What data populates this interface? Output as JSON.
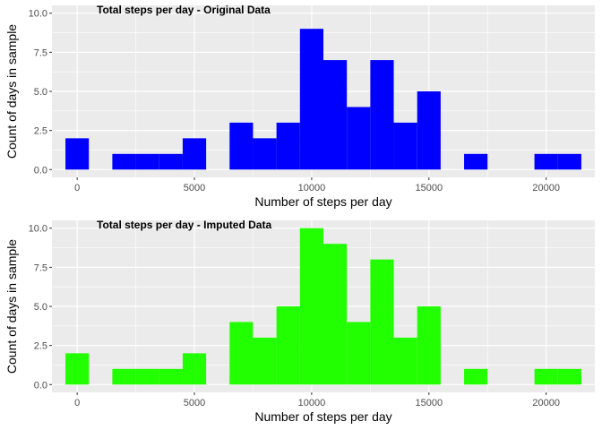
{
  "chart_data": [
    {
      "type": "bar",
      "subtype": "histogram",
      "title": "Total steps per day - Original Data",
      "xlabel": "Number of steps per day",
      "ylabel": "Count of days in sample",
      "bin_width": 1000,
      "bin_centers": [
        0,
        1000,
        2000,
        3000,
        4000,
        5000,
        6000,
        7000,
        8000,
        9000,
        10000,
        11000,
        12000,
        13000,
        14000,
        15000,
        16000,
        17000,
        18000,
        19000,
        20000,
        21000
      ],
      "values": [
        2,
        0,
        1,
        1,
        1,
        2,
        0,
        3,
        2,
        3,
        9,
        7,
        4,
        7,
        3,
        5,
        0,
        1,
        0,
        0,
        1,
        1
      ],
      "xlim": [
        -1075,
        22075
      ],
      "ylim": [
        -0.5,
        10.5
      ],
      "x_ticks": [
        0,
        5000,
        10000,
        15000,
        20000
      ],
      "x_tick_labels": [
        "0",
        "5000",
        "10000",
        "15000",
        "20000"
      ],
      "y_ticks": [
        0,
        2.5,
        5,
        7.5,
        10
      ],
      "y_tick_labels": [
        "0.0",
        "2.5",
        "5.0",
        "7.5",
        "10.0"
      ],
      "fill_color": "#0000ff",
      "panel_background": "#ebebeb",
      "grid": true
    },
    {
      "type": "bar",
      "subtype": "histogram",
      "title": "Total steps per day - Imputed Data",
      "xlabel": "Number of steps per day",
      "ylabel": "Count of days in sample",
      "bin_width": 1000,
      "bin_centers": [
        0,
        1000,
        2000,
        3000,
        4000,
        5000,
        6000,
        7000,
        8000,
        9000,
        10000,
        11000,
        12000,
        13000,
        14000,
        15000,
        16000,
        17000,
        18000,
        19000,
        20000,
        21000
      ],
      "values": [
        2,
        0,
        1,
        1,
        1,
        2,
        0,
        4,
        3,
        5,
        10,
        9,
        4,
        8,
        3,
        5,
        0,
        1,
        0,
        0,
        1,
        1
      ],
      "xlim": [
        -1075,
        22075
      ],
      "ylim": [
        -0.5,
        10.5
      ],
      "x_ticks": [
        0,
        5000,
        10000,
        15000,
        20000
      ],
      "x_tick_labels": [
        "0",
        "5000",
        "10000",
        "15000",
        "20000"
      ],
      "y_ticks": [
        0,
        2.5,
        5,
        7.5,
        10
      ],
      "y_tick_labels": [
        "0.0",
        "2.5",
        "5.0",
        "7.5",
        "10.0"
      ],
      "fill_color": "#22ff00",
      "panel_background": "#ebebeb",
      "grid": true
    }
  ]
}
